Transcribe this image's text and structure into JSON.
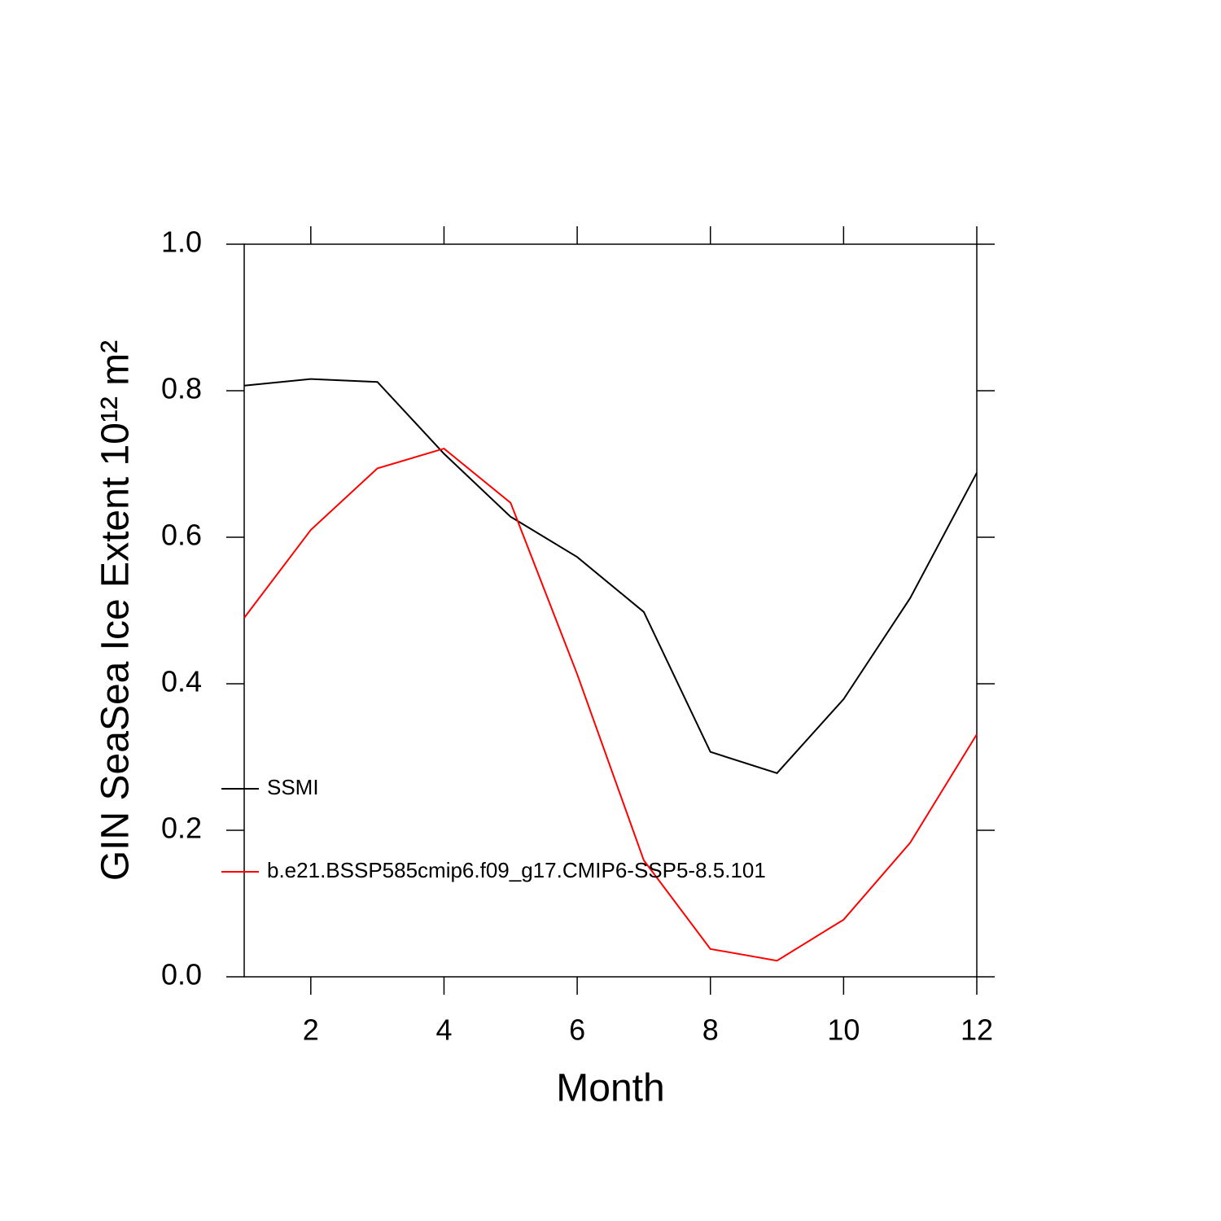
{
  "chart_data": {
    "type": "line",
    "xlabel": "Month",
    "ylabel": "GIN SeaSea Ice Extent 10¹² m²",
    "x": [
      1,
      2,
      3,
      4,
      5,
      6,
      7,
      8,
      9,
      10,
      11,
      12
    ],
    "series": [
      {
        "name": "SSMI",
        "color": "#000000",
        "values": [
          0.807,
          0.816,
          0.812,
          0.714,
          0.628,
          0.573,
          0.498,
          0.307,
          0.278,
          0.379,
          0.517,
          0.688
        ]
      },
      {
        "name": "b.e21.BSSP585cmip6.f09_g17.CMIP6-SSP5-8.5.101",
        "color": "#ff0000",
        "values": [
          0.49,
          0.61,
          0.694,
          0.721,
          0.647,
          0.413,
          0.159,
          0.038,
          0.022,
          0.078,
          0.183,
          0.331
        ]
      }
    ],
    "xlim": [
      1,
      12
    ],
    "xticks": [
      2,
      4,
      6,
      8,
      10,
      12
    ],
    "ylim": [
      0,
      1
    ],
    "yticks": [
      {
        "value": 0,
        "label": "0.0"
      },
      0.2,
      0.4,
      0.6,
      0.8,
      {
        "value": 1,
        "label": "1.0"
      }
    ],
    "legend": "left",
    "grid": false
  }
}
